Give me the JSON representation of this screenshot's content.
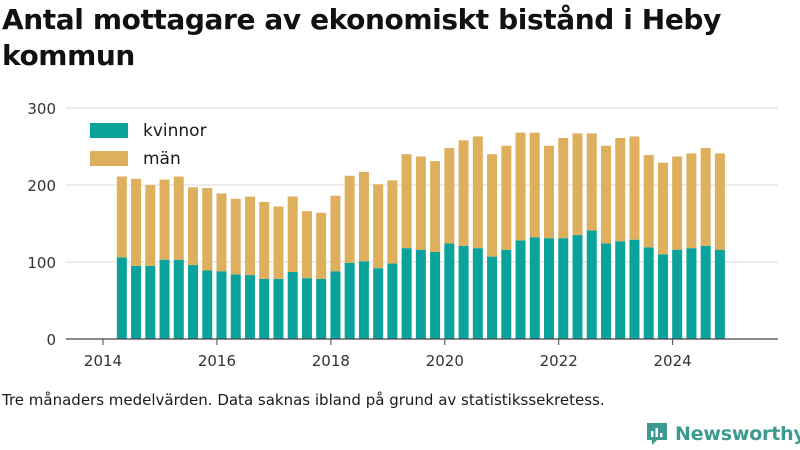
{
  "title": "Antal mottagare av ekonomiskt bistånd i Heby kommun",
  "footnote": "Tre månaders medelvärden. Data saknas ibland på grund av statistikssekretess.",
  "brand": {
    "name": "Newsworthy",
    "icon": "newsworthy-logo-icon",
    "color": "#3d9a8f"
  },
  "chart_data": {
    "type": "bar",
    "stacked": true,
    "title": "Antal mottagare av ekonomiskt bistånd i Heby kommun",
    "xlabel": "",
    "ylabel": "",
    "xlim": [
      2013.35,
      2025.85
    ],
    "ylim": [
      0,
      300
    ],
    "x_ticks": [
      2014,
      2016,
      2018,
      2020,
      2022,
      2024
    ],
    "y_ticks": [
      0,
      100,
      200,
      300
    ],
    "grid": "horizontal",
    "legend_position": "top-left",
    "x": [
      2014.33,
      2014.58,
      2014.83,
      2015.08,
      2015.33,
      2015.58,
      2015.83,
      2016.08,
      2016.33,
      2016.58,
      2016.83,
      2017.08,
      2017.33,
      2017.58,
      2017.83,
      2018.08,
      2018.33,
      2018.58,
      2018.83,
      2019.08,
      2019.33,
      2019.58,
      2019.83,
      2020.08,
      2020.33,
      2020.58,
      2020.83,
      2021.08,
      2021.33,
      2021.58,
      2021.83,
      2022.08,
      2022.33,
      2022.58,
      2022.83,
      2023.08,
      2023.33,
      2023.58,
      2023.83,
      2024.08,
      2024.33,
      2024.58,
      2024.83
    ],
    "series": [
      {
        "name": "kvinnor",
        "color": "#0aa39b",
        "values": [
          106,
          95,
          95,
          103,
          103,
          96,
          89,
          88,
          84,
          83,
          78,
          78,
          87,
          79,
          78,
          88,
          99,
          101,
          92,
          98,
          118,
          116,
          113,
          124,
          121,
          118,
          107,
          116,
          128,
          132,
          131,
          131,
          135,
          141,
          124,
          127,
          129,
          119,
          110,
          116,
          118,
          121,
          116
        ]
      },
      {
        "name": "män",
        "color": "#deaf5c",
        "values": [
          105,
          113,
          105,
          104,
          108,
          101,
          107,
          101,
          98,
          102,
          100,
          94,
          98,
          87,
          86,
          98,
          113,
          116,
          109,
          108,
          122,
          121,
          118,
          124,
          137,
          145,
          133,
          135,
          140,
          136,
          120,
          130,
          132,
          126,
          127,
          134,
          134,
          120,
          119,
          121,
          123,
          127,
          125
        ]
      }
    ]
  }
}
